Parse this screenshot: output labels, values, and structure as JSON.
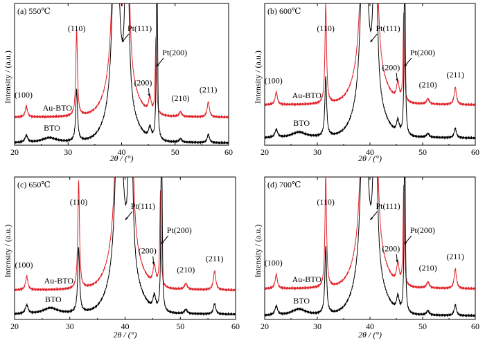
{
  "chart_data": [
    {
      "type": "line",
      "title": "(a) 550℃",
      "xlabel": "2θ / (°)",
      "ylabel": "Intensity / (a.u.)",
      "xlim": [
        20,
        60
      ],
      "xticks": [
        20,
        30,
        40,
        50,
        60
      ],
      "series": [
        {
          "name": "Au-BTO",
          "color": "#e0242a"
        },
        {
          "name": "BTO",
          "color": "#000000"
        }
      ],
      "peaks": [
        {
          "hkl": "(100)",
          "x": 22.2
        },
        {
          "hkl": "(110)",
          "x": 31.6
        },
        {
          "hkl": "Pt(111)",
          "x": 39.8
        },
        {
          "hkl": "(200)",
          "x": 45.3
        },
        {
          "hkl": "Pt(200)",
          "x": 46.3
        },
        {
          "hkl": "(210)",
          "x": 51.0
        },
        {
          "hkl": "(211)",
          "x": 56.2
        }
      ]
    },
    {
      "type": "line",
      "title": "(b) 600℃",
      "xlabel": "2θ / (°)",
      "ylabel": "Intensity / (a.u.)",
      "xlim": [
        20,
        60
      ],
      "xticks": [
        20,
        30,
        40,
        50,
        60
      ],
      "series": [
        {
          "name": "Au-BTO",
          "color": "#e0242a"
        },
        {
          "name": "BTO",
          "color": "#000000"
        }
      ],
      "peaks": [
        {
          "hkl": "(100)",
          "x": 22.2
        },
        {
          "hkl": "(110)",
          "x": 31.6
        },
        {
          "hkl": "Pt(111)",
          "x": 39.8
        },
        {
          "hkl": "(200)",
          "x": 45.3
        },
        {
          "hkl": "Pt(200)",
          "x": 46.3
        },
        {
          "hkl": "(210)",
          "x": 51.0
        },
        {
          "hkl": "(211)",
          "x": 56.2
        }
      ]
    },
    {
      "type": "line",
      "title": "(c) 650℃",
      "xlabel": "2θ / (°)",
      "ylabel": "Intensity / (a.u.)",
      "xlim": [
        20,
        60
      ],
      "xticks": [
        20,
        30,
        40,
        50,
        60
      ],
      "series": [
        {
          "name": "Au-BTO",
          "color": "#e0242a"
        },
        {
          "name": "BTO",
          "color": "#000000"
        }
      ],
      "peaks": [
        {
          "hkl": "(100)",
          "x": 22.2
        },
        {
          "hkl": "(110)",
          "x": 31.6
        },
        {
          "hkl": "Pt(111)",
          "x": 39.8
        },
        {
          "hkl": "(200)",
          "x": 45.3
        },
        {
          "hkl": "Pt(200)",
          "x": 46.3
        },
        {
          "hkl": "(210)",
          "x": 51.0
        },
        {
          "hkl": "(211)",
          "x": 56.2
        }
      ]
    },
    {
      "type": "line",
      "title": "(d) 700℃",
      "xlabel": "2θ / (°)",
      "ylabel": "Intensity / (a.u.)",
      "xlim": [
        20,
        60
      ],
      "xticks": [
        20,
        30,
        40,
        50,
        60
      ],
      "series": [
        {
          "name": "Au-BTO",
          "color": "#e0242a"
        },
        {
          "name": "BTO",
          "color": "#000000"
        }
      ],
      "peaks": [
        {
          "hkl": "(100)",
          "x": 22.2
        },
        {
          "hkl": "(110)",
          "x": 31.6
        },
        {
          "hkl": "Pt(111)",
          "x": 39.8
        },
        {
          "hkl": "(200)",
          "x": 45.3
        },
        {
          "hkl": "Pt(200)",
          "x": 46.3
        },
        {
          "hkl": "(210)",
          "x": 51.0
        },
        {
          "hkl": "(211)",
          "x": 56.2
        }
      ]
    }
  ]
}
